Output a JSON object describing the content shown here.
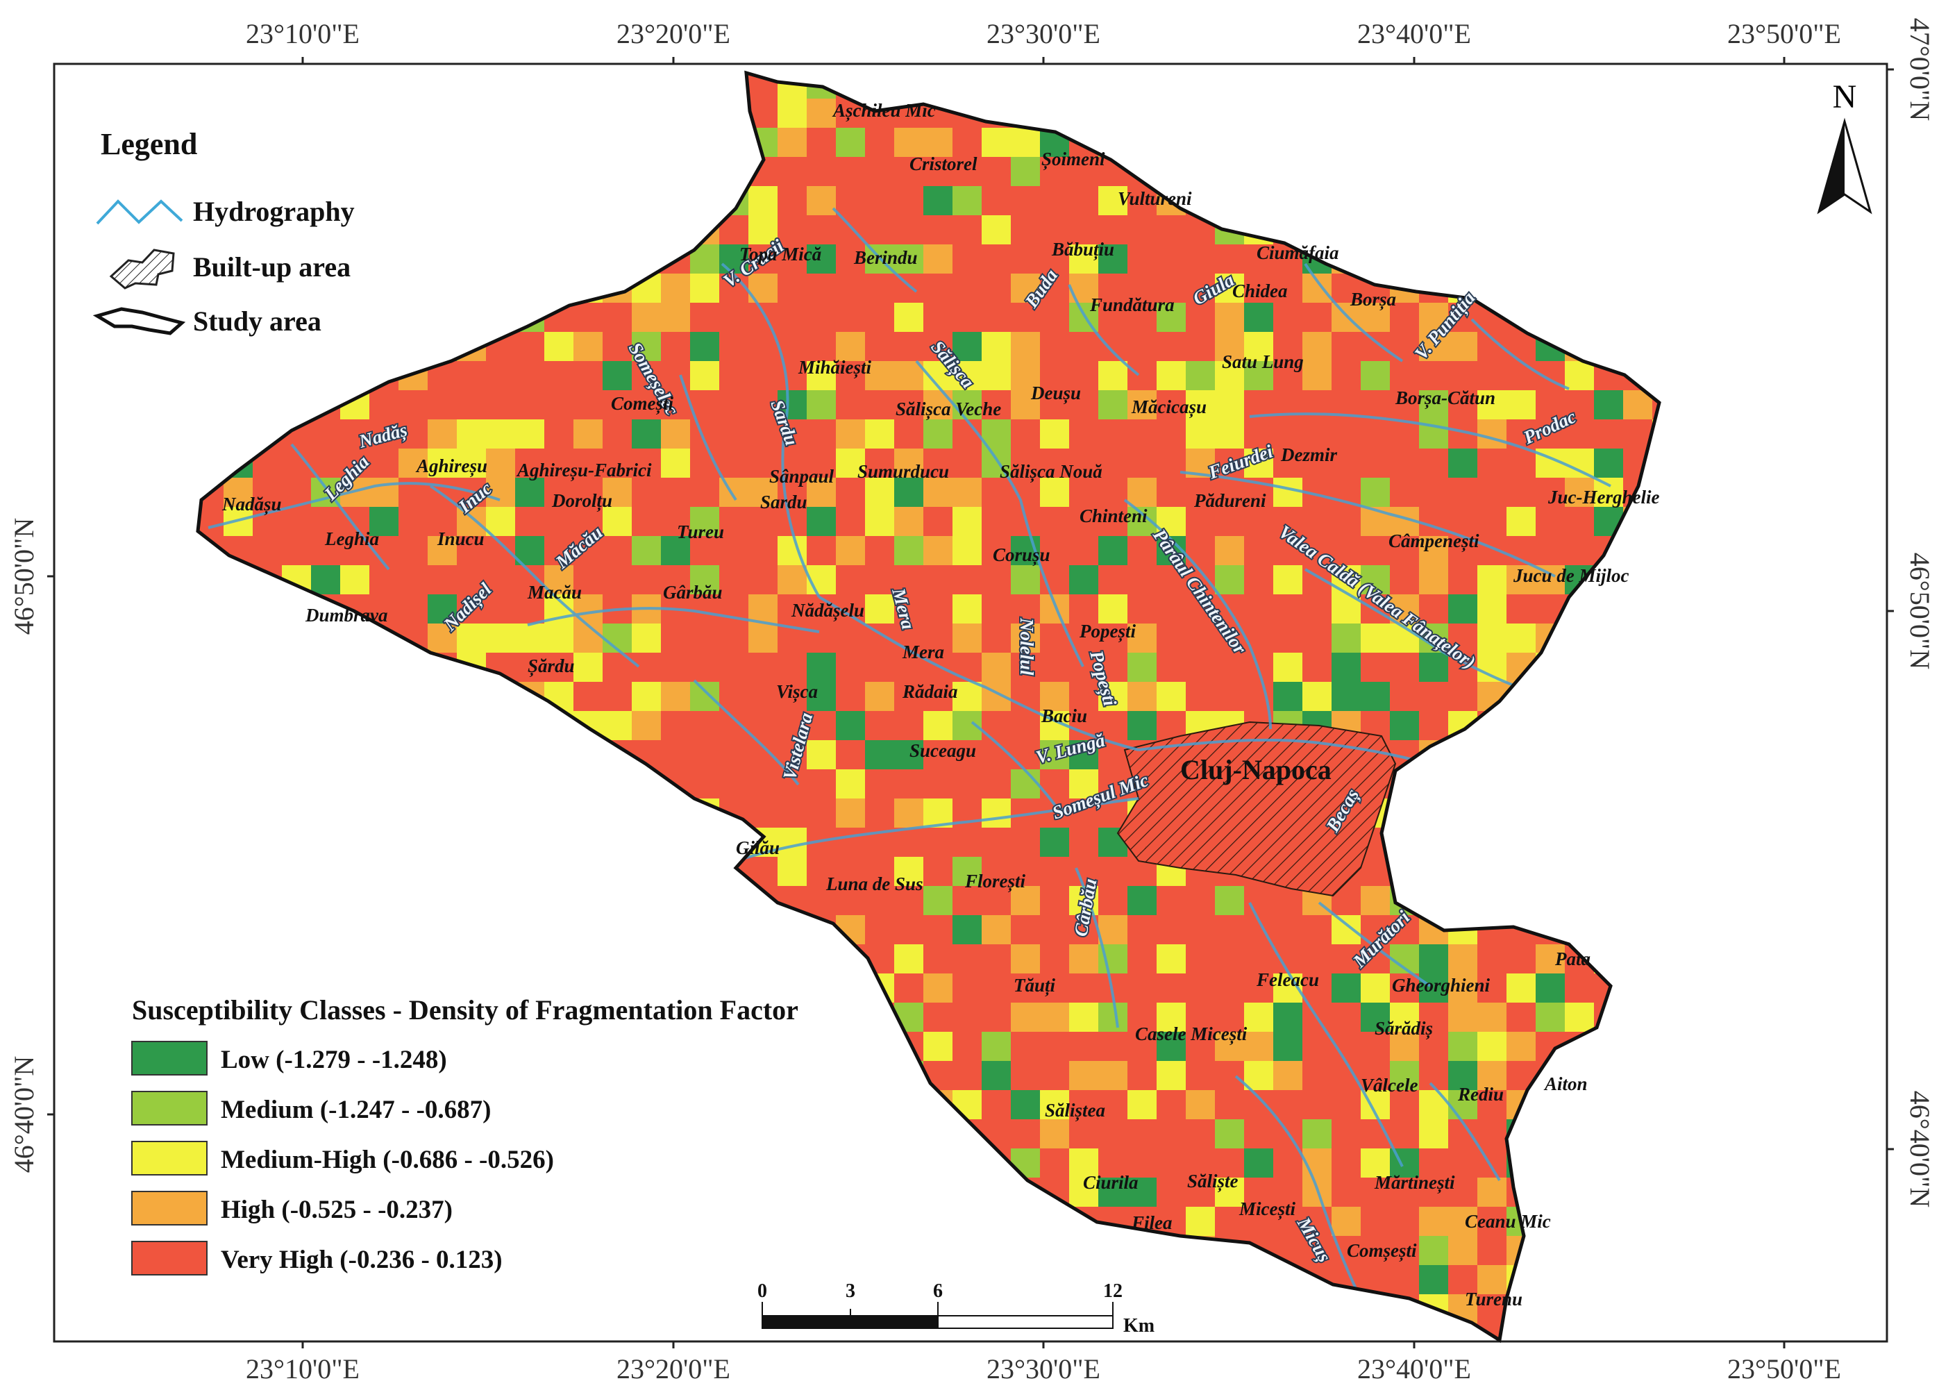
{
  "map": {
    "north_label": "N",
    "top_lon_labels": [
      "23°10'0\"E",
      "23°20'0\"E",
      "23°30'0\"E",
      "23°40'0\"E",
      "23°50'0\"E"
    ],
    "bottom_lon_labels": [
      "23°10'0\"E",
      "23°20'0\"E",
      "23°30'0\"E",
      "23°40'0\"E",
      "23°50'0\"E"
    ],
    "left_lat_labels": [
      "46°50'0\"N",
      "46°40'0\"N"
    ],
    "right_lat_labels": [
      "47°0'0\"N",
      "46°50'0\"N",
      "46°40'0\"N"
    ]
  },
  "legend": {
    "title": "Legend",
    "items": [
      {
        "label": "Hydrography",
        "symbol": "hydrography-icon"
      },
      {
        "label": "Built-up area",
        "symbol": "hatched-area-icon"
      },
      {
        "label": "Study area",
        "symbol": "outline-icon"
      }
    ]
  },
  "susceptibility": {
    "title": "Susceptibility Classes - Density of Fragmentation Factor",
    "classes": [
      {
        "label": "Low (-1.279 - -1.248)",
        "color": "#2e9a4b"
      },
      {
        "label": "Medium (-1.247 - -0.687)",
        "color": "#98cc3e"
      },
      {
        "label": "Medium-High (-0.686 - -0.526)",
        "color": "#f2f23c"
      },
      {
        "label": "High (-0.525 - -0.237)",
        "color": "#f5aa3e"
      },
      {
        "label": "Very High (-0.236 - 0.123)",
        "color": "#f0553e"
      }
    ]
  },
  "scalebar": {
    "ticks": [
      "0",
      "3",
      "6",
      "12"
    ],
    "unit": "Km"
  },
  "places": [
    {
      "name": "Așchileu Mic",
      "major": false
    },
    {
      "name": "Cristorel",
      "major": false
    },
    {
      "name": "Șoimeni",
      "major": false
    },
    {
      "name": "Vultureni",
      "major": false
    },
    {
      "name": "Topa Mică",
      "major": false
    },
    {
      "name": "Berindu",
      "major": false
    },
    {
      "name": "Băbuțiu",
      "major": false
    },
    {
      "name": "Ciumăfaia",
      "major": false
    },
    {
      "name": "Chidea",
      "major": false
    },
    {
      "name": "Borșa",
      "major": false
    },
    {
      "name": "Fundătura",
      "major": false
    },
    {
      "name": "Satu Lung",
      "major": false
    },
    {
      "name": "Mihăiești",
      "major": false
    },
    {
      "name": "Sălișca Veche",
      "major": false
    },
    {
      "name": "Deușu",
      "major": false
    },
    {
      "name": "Măcicașu",
      "major": false
    },
    {
      "name": "Borșa-Cătun",
      "major": false
    },
    {
      "name": "Comești",
      "major": false
    },
    {
      "name": "Nadășu",
      "major": false
    },
    {
      "name": "Aghireșu",
      "major": false
    },
    {
      "name": "Aghireșu-Fabrici",
      "major": false
    },
    {
      "name": "Sânpaul",
      "major": false
    },
    {
      "name": "Sumurducu",
      "major": false
    },
    {
      "name": "Sălișca Nouă",
      "major": false
    },
    {
      "name": "Dezmir",
      "major": false
    },
    {
      "name": "Juc-Herghelie",
      "major": false
    },
    {
      "name": "Leghia",
      "major": false
    },
    {
      "name": "Inucu",
      "major": false
    },
    {
      "name": "Dorolțu",
      "major": false
    },
    {
      "name": "Sardu",
      "major": false
    },
    {
      "name": "Tureu",
      "major": false
    },
    {
      "name": "Chinteni",
      "major": false
    },
    {
      "name": "Pădureni",
      "major": false
    },
    {
      "name": "Câmpenești",
      "major": false
    },
    {
      "name": "Jucu de Mijloc",
      "major": false
    },
    {
      "name": "Dumbrava",
      "major": false
    },
    {
      "name": "Macău",
      "major": false
    },
    {
      "name": "Gârbău",
      "major": false
    },
    {
      "name": "Nădășelu",
      "major": false
    },
    {
      "name": "Corușu",
      "major": false
    },
    {
      "name": "Mera",
      "major": false
    },
    {
      "name": "Popești",
      "major": false
    },
    {
      "name": "Șărdu",
      "major": false
    },
    {
      "name": "Rădaia",
      "major": false
    },
    {
      "name": "Vișca",
      "major": false
    },
    {
      "name": "Baciu",
      "major": false
    },
    {
      "name": "Suceagu",
      "major": false
    },
    {
      "name": "Cluj-Napoca",
      "major": true
    },
    {
      "name": "Gilău",
      "major": false
    },
    {
      "name": "Luna de Sus",
      "major": false
    },
    {
      "name": "Florești",
      "major": false
    },
    {
      "name": "Tăuți",
      "major": false
    },
    {
      "name": "Feleacu",
      "major": false
    },
    {
      "name": "Gheorghieni",
      "major": false
    },
    {
      "name": "Pata",
      "major": false
    },
    {
      "name": "Casele Micești",
      "major": false
    },
    {
      "name": "Sărădiș",
      "major": false
    },
    {
      "name": "Vâlcele",
      "major": false
    },
    {
      "name": "Rediu",
      "major": false
    },
    {
      "name": "Aiton",
      "major": false
    },
    {
      "name": "Săliștea",
      "major": false
    },
    {
      "name": "Ciurila",
      "major": false
    },
    {
      "name": "Săliște",
      "major": false
    },
    {
      "name": "Micești",
      "major": false
    },
    {
      "name": "Mărtinești",
      "major": false
    },
    {
      "name": "Ceanu Mic",
      "major": false
    },
    {
      "name": "Filea",
      "major": false
    },
    {
      "name": "Comșești",
      "major": false
    },
    {
      "name": "Turenu",
      "major": false
    }
  ],
  "rivers": [
    {
      "name": "V. Crucii"
    },
    {
      "name": "Buda"
    },
    {
      "name": "Giula"
    },
    {
      "name": "V. Puntiția"
    },
    {
      "name": "Someșelec"
    },
    {
      "name": "Sălișca"
    },
    {
      "name": "Sardu"
    },
    {
      "name": "Prodac"
    },
    {
      "name": "Nadăș"
    },
    {
      "name": "Leghia"
    },
    {
      "name": "Inuc"
    },
    {
      "name": "Feiurdei"
    },
    {
      "name": "Măcău"
    },
    {
      "name": "Pârâul Chintenilor"
    },
    {
      "name": "Valea Caldă (Valea Fânațelor)"
    },
    {
      "name": "Nadișel"
    },
    {
      "name": "Mera"
    },
    {
      "name": "Nolelul"
    },
    {
      "name": "Popești"
    },
    {
      "name": "V. Lungă"
    },
    {
      "name": "Vistelara"
    },
    {
      "name": "Someșul Mic"
    },
    {
      "name": "Becaș"
    },
    {
      "name": "Cârbău"
    },
    {
      "name": "Murători"
    },
    {
      "name": "Micuș"
    }
  ]
}
